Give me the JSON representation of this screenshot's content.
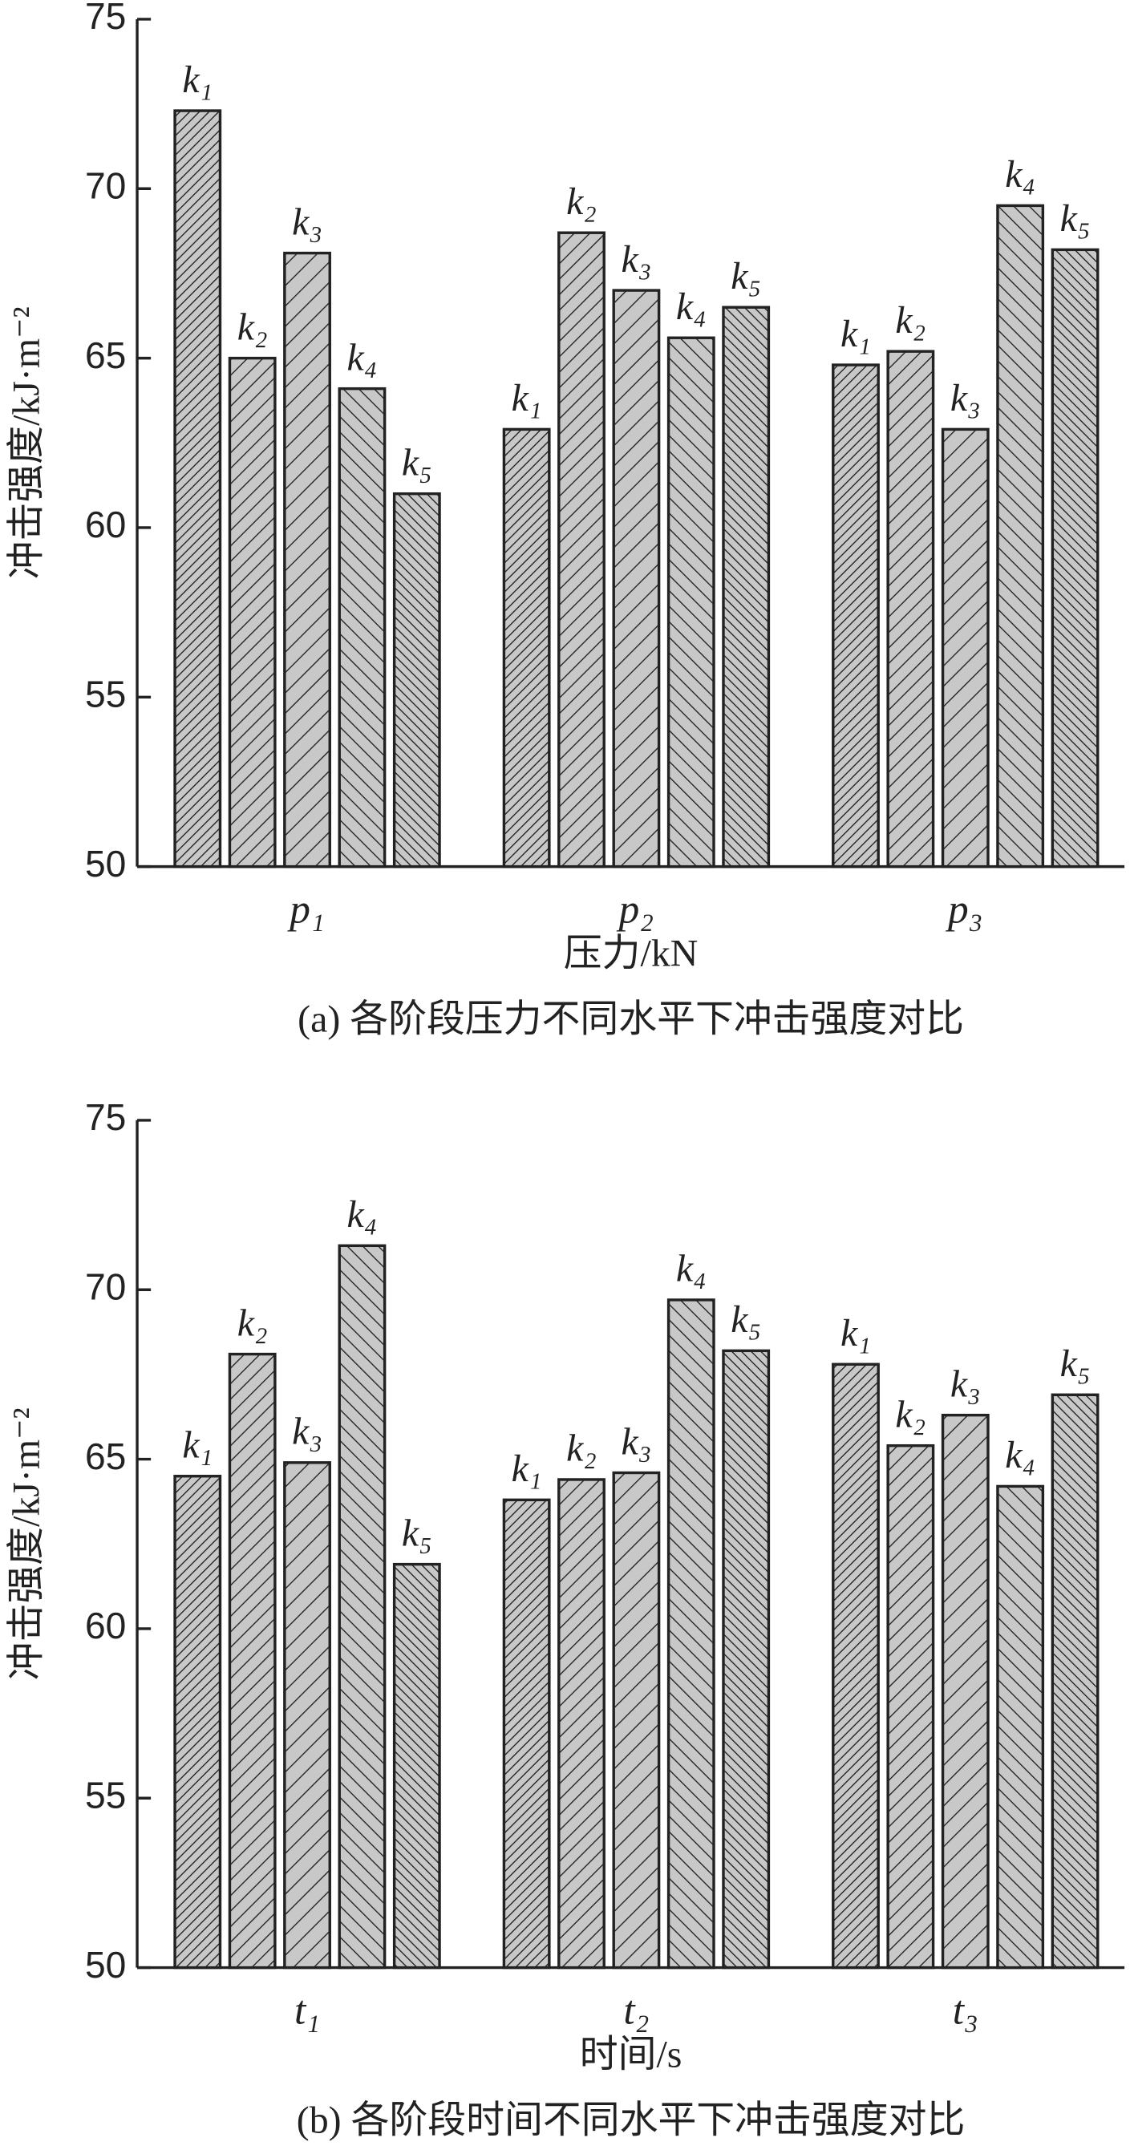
{
  "chart_data": [
    {
      "type": "bar",
      "ylabel": "冲击强度/kJ·m⁻²",
      "xlabel": "压力/kN",
      "caption": "(a) 各阶段压力不同水平下冲击强度对比",
      "categories": [
        "p₁",
        "p₂",
        "p₃"
      ],
      "series": [
        {
          "name": "k₁",
          "color": "#c8c8c8",
          "hatch": "////",
          "values": [
            72.3,
            62.9,
            64.8
          ]
        },
        {
          "name": "k₂",
          "color": "#c8c8c8",
          "hatch": "//",
          "values": [
            65.0,
            68.7,
            65.2
          ]
        },
        {
          "name": "k₃",
          "color": "#c8c8c8",
          "hatch": "/",
          "values": [
            68.1,
            67.0,
            62.9
          ]
        },
        {
          "name": "k₄",
          "color": "#c8c8c8",
          "hatch": "\\\\",
          "values": [
            64.1,
            65.6,
            69.5
          ]
        },
        {
          "name": "k₅",
          "color": "#c8c8c8",
          "hatch": "\\\\\\\\",
          "values": [
            61.0,
            66.5,
            68.2
          ]
        }
      ],
      "ylim": [
        50,
        75
      ],
      "yticks": [
        50,
        55,
        60,
        65,
        70,
        75
      ]
    },
    {
      "type": "bar",
      "ylabel": "冲击强度/kJ·m⁻²",
      "xlabel": "时间/s",
      "caption": "(b) 各阶段时间不同水平下冲击强度对比",
      "categories": [
        "t₁",
        "t₂",
        "t₃"
      ],
      "series": [
        {
          "name": "k₁",
          "color": "#c8c8c8",
          "hatch": "////",
          "values": [
            64.5,
            63.8,
            67.8
          ]
        },
        {
          "name": "k₂",
          "color": "#c8c8c8",
          "hatch": "//",
          "values": [
            68.1,
            64.4,
            65.4
          ]
        },
        {
          "name": "k₃",
          "color": "#c8c8c8",
          "hatch": "/",
          "values": [
            64.9,
            64.6,
            66.3
          ]
        },
        {
          "name": "k₄",
          "color": "#c8c8c8",
          "hatch": "\\\\",
          "values": [
            71.3,
            69.7,
            64.2
          ]
        },
        {
          "name": "k₅",
          "color": "#c8c8c8",
          "hatch": "\\\\\\\\",
          "values": [
            61.9,
            68.2,
            66.9
          ]
        }
      ],
      "ylim": [
        50,
        75
      ],
      "yticks": [
        50,
        55,
        60,
        65,
        70,
        75
      ]
    }
  ]
}
